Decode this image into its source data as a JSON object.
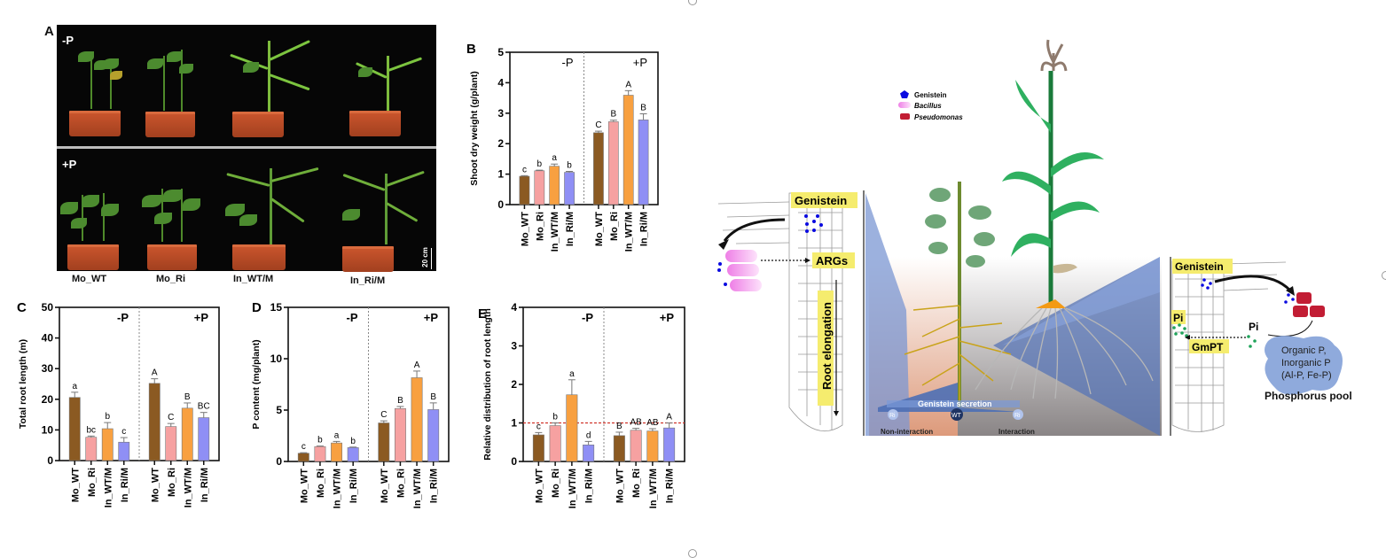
{
  "panel_a": {
    "letter": "A",
    "row_labels": [
      "-P",
      "+P"
    ],
    "scale_bar": "20 cm",
    "plant_labels": [
      "Mo_WT",
      "Mo_Ri",
      "In_WT/M",
      "In_Ri/M"
    ]
  },
  "colors": {
    "Mo_WT": "#8b5a22",
    "Mo_Ri": "#f6a1a1",
    "In_WT/M": "#f8a040",
    "In_Ri/M": "#8f8ff5",
    "reference_line": "#d0342c"
  },
  "chart_data": [
    {
      "id": "B",
      "type": "bar",
      "title": "",
      "ylabel": "Shoot dry weight (g/plant)",
      "ylim": [
        0,
        5
      ],
      "yticks": [
        0,
        1,
        2,
        3,
        4,
        5
      ],
      "groups": [
        "-P",
        "+P"
      ],
      "categories": [
        "Mo_WT",
        "Mo_Ri",
        "In_WT/M",
        "In_Ri/M"
      ],
      "series": [
        {
          "name": "-P",
          "values": [
            0.93,
            1.11,
            1.26,
            1.06
          ],
          "errors": [
            0.02,
            0.02,
            0.07,
            0.03
          ],
          "letters": [
            "c",
            "b",
            "a",
            "b"
          ]
        },
        {
          "name": "+P",
          "values": [
            2.36,
            2.72,
            3.59,
            2.78
          ],
          "errors": [
            0.05,
            0.05,
            0.15,
            0.2
          ],
          "letters": [
            "C",
            "B",
            "A",
            "B"
          ]
        }
      ],
      "group_label_style": "normal"
    },
    {
      "id": "C",
      "type": "bar",
      "title": "",
      "ylabel": "Total root length (m)",
      "ylim": [
        0,
        50
      ],
      "yticks": [
        0,
        10,
        20,
        30,
        40,
        50
      ],
      "groups": [
        "-P",
        "+P"
      ],
      "categories": [
        "Mo_WT",
        "Mo_Ri",
        "In_WT/M",
        "In_Ri/M"
      ],
      "series": [
        {
          "name": "-P",
          "values": [
            20.6,
            7.6,
            10.4,
            6.0
          ],
          "errors": [
            1.7,
            0.4,
            2.0,
            1.5
          ],
          "letters": [
            "a",
            "bc",
            "b",
            "c"
          ]
        },
        {
          "name": "+P",
          "values": [
            25.2,
            11.1,
            17.1,
            14.0
          ],
          "errors": [
            1.5,
            1.0,
            1.7,
            1.7
          ],
          "letters": [
            "A",
            "C",
            "B",
            "BC"
          ]
        }
      ],
      "group_label_style": "bold"
    },
    {
      "id": "D",
      "type": "bar",
      "title": "",
      "ylabel": "P content (mg/plant)",
      "ylim": [
        0,
        15
      ],
      "yticks": [
        0,
        5,
        10,
        15
      ],
      "groups": [
        "-P",
        "+P"
      ],
      "categories": [
        "Mo_WT",
        "Mo_Ri",
        "In_WT/M",
        "In_Ri/M"
      ],
      "series": [
        {
          "name": "-P",
          "values": [
            0.8,
            1.45,
            1.8,
            1.35
          ],
          "errors": [
            0.05,
            0.05,
            0.15,
            0.05
          ],
          "letters": [
            "c",
            "b",
            "a",
            "b"
          ]
        },
        {
          "name": "+P",
          "values": [
            3.75,
            5.15,
            8.15,
            5.05
          ],
          "errors": [
            0.2,
            0.2,
            0.65,
            0.65
          ],
          "letters": [
            "C",
            "B",
            "A",
            "B"
          ]
        }
      ],
      "group_label_style": "bold"
    },
    {
      "id": "E",
      "type": "bar",
      "title": "",
      "ylabel": "Relative distribution of root length",
      "ylim": [
        0,
        4
      ],
      "yticks": [
        0,
        1,
        2,
        3,
        4
      ],
      "reference_line": 1,
      "groups": [
        "-P",
        "+P"
      ],
      "categories": [
        "Mo_WT",
        "Mo_Ri",
        "In_WT/M",
        "In_Ri/M"
      ],
      "series": [
        {
          "name": "-P",
          "values": [
            0.69,
            0.93,
            1.73,
            0.43
          ],
          "errors": [
            0.06,
            0.07,
            0.39,
            0.09
          ],
          "letters": [
            "c",
            "b",
            "a",
            "d"
          ]
        },
        {
          "name": "+P",
          "values": [
            0.67,
            0.81,
            0.79,
            0.87
          ],
          "errors": [
            0.09,
            0.05,
            0.06,
            0.13
          ],
          "letters": [
            "B",
            "AB",
            "AB",
            "A"
          ]
        }
      ],
      "group_label_style": "bold"
    }
  ],
  "diagram": {
    "legend": [
      {
        "label": "Genistein",
        "icon": "pentagon-icon",
        "color": "#0a0ae0"
      },
      {
        "label": "Bacillus",
        "icon": "capsule-icon",
        "color": "#f08ae8"
      },
      {
        "label": "Pseudomonas",
        "icon": "rounded-rect-icon",
        "color": "#c21d34"
      }
    ],
    "left_labels": {
      "genistein": "Genistein",
      "args": "ARGs",
      "root_elongation": "Root elongation"
    },
    "bottom_labels": {
      "secretion": "Genistein secretion",
      "ri_left": "Ri",
      "wt": "WT",
      "ri_right": "Ri",
      "non_interaction": "Non-interaction",
      "interaction": "Interaction"
    },
    "right_labels": {
      "genistein": "Genistein",
      "pi_left": "Pi",
      "gmpt": "GmPT",
      "pi_right": "Pi",
      "pool_text": [
        "Organic P,",
        "Inorganic P",
        "(Al-P, Fe-P)"
      ],
      "pool_title": "Phosphorus pool"
    }
  }
}
